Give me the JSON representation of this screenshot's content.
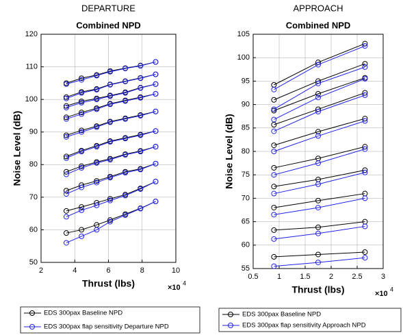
{
  "chart_data": [
    {
      "type": "line",
      "title": "DEPARTURE",
      "subtitle": "Combined NPD",
      "xlabel": "Thrust (lbs)",
      "ylabel": "Noise Level (dB)",
      "x_scale_base": "×10",
      "x_scale_exponent": "4",
      "xlim": [
        2,
        10
      ],
      "xticks": [
        2,
        4,
        6,
        8,
        10
      ],
      "ylim": [
        50,
        120
      ],
      "yticks": [
        50,
        60,
        70,
        80,
        90,
        100,
        110,
        120
      ],
      "grid": true,
      "x": [
        3.5,
        4.4,
        5.3,
        6.1,
        7.0,
        7.9,
        8.8
      ],
      "series": [
        {
          "name": "EDS 300pax Baseline NPD",
          "color": "#000000",
          "values": [
            [
              105,
              106.5,
              107.5,
              108.7,
              109.6,
              110.4,
              111.5
            ],
            [
              100.7,
              102.3,
              103.2,
              104.6,
              105.6,
              106.6,
              107.7
            ],
            [
              98,
              99.4,
              100.3,
              101.2,
              102.2,
              103.6,
              104.7
            ],
            [
              94.5,
              96,
              97.3,
              98.7,
              99.7,
              100.7,
              101.7
            ],
            [
              89,
              90.5,
              91.8,
              93.2,
              94.2,
              95.2,
              96.3
            ],
            [
              82.5,
              84.3,
              85.8,
              87.2,
              88.2,
              89.2,
              90.3
            ],
            [
              77.8,
              79.5,
              80.8,
              81.8,
              83.2,
              84.2,
              85.5
            ],
            [
              72,
              73.7,
              75,
              76.3,
              77.8,
              78.7,
              80.3
            ],
            [
              65.8,
              67,
              68.3,
              69.5,
              70.8,
              72.7,
              74.8
            ],
            [
              59,
              60,
              61.5,
              63,
              64.8,
              66.6,
              68.7
            ]
          ]
        },
        {
          "name": "EDS 300pax flap sensitivity Departure NPD",
          "color": "#2020ee",
          "values": [
            [
              104.7,
              106,
              107.3,
              108.5,
              109.5,
              110.3,
              111.5
            ],
            [
              100.3,
              102,
              103,
              104.5,
              105.5,
              106.5,
              107.7
            ],
            [
              97.5,
              99,
              100,
              101,
              102,
              103.5,
              104.7
            ],
            [
              94,
              95.5,
              97,
              98.5,
              99.5,
              100.5,
              101.7
            ],
            [
              88.5,
              90,
              91.5,
              93,
              94,
              95,
              96.3
            ],
            [
              82,
              84,
              85.5,
              87,
              88,
              89,
              90.3
            ],
            [
              77,
              79,
              80.5,
              81.5,
              83,
              84,
              85.5
            ],
            [
              71,
              73,
              74.5,
              76,
              77.5,
              78.5,
              80.3
            ],
            [
              64,
              66,
              67.5,
              69,
              70.5,
              72.5,
              74.8
            ],
            [
              56,
              58,
              60,
              62.5,
              64.5,
              66.5,
              68.7
            ]
          ]
        }
      ]
    },
    {
      "type": "line",
      "title": "APPROACH",
      "subtitle": "Combined NPD",
      "xlabel": "Thrust (lbs)",
      "ylabel": "Noise Level (dB)",
      "x_scale_base": "×10",
      "x_scale_exponent": "4",
      "xlim": [
        0.5,
        3
      ],
      "xticks": [
        0.5,
        1,
        1.5,
        2,
        2.5,
        3
      ],
      "ylim": [
        55,
        105
      ],
      "yticks": [
        55,
        60,
        65,
        70,
        75,
        80,
        85,
        90,
        95,
        100,
        105
      ],
      "grid": true,
      "x": [
        0.9,
        1.75,
        2.65
      ],
      "series": [
        {
          "name": "EDS 300pax Baseline NPD",
          "color": "#000000",
          "values": [
            [
              94.2,
              99,
              103
            ],
            [
              91,
              95,
              98.7
            ],
            [
              88.7,
              92.3,
              95.7
            ],
            [
              85.7,
              89,
              92.5
            ],
            [
              81.3,
              84.2,
              87
            ],
            [
              76.5,
              78.5,
              81
            ],
            [
              72.5,
              74,
              76
            ],
            [
              68,
              69.5,
              71
            ],
            [
              63.2,
              63.8,
              65
            ],
            [
              57.5,
              58,
              58.5
            ]
          ]
        },
        {
          "name": "EDS 300pax flap sensitivity Approach NPD",
          "color": "#2020ee",
          "values": [
            [
              93.2,
              98.5,
              102.5
            ],
            [
              89,
              94.5,
              98
            ],
            [
              86.8,
              91.5,
              95.5
            ],
            [
              84.3,
              88.5,
              92
            ],
            [
              80,
              83.3,
              86.5
            ],
            [
              75,
              77.5,
              80.5
            ],
            [
              71,
              73,
              75.5
            ],
            [
              66.5,
              68,
              70
            ],
            [
              61.3,
              62.5,
              64
            ],
            [
              55.5,
              56.3,
              57.3
            ]
          ]
        }
      ]
    }
  ]
}
